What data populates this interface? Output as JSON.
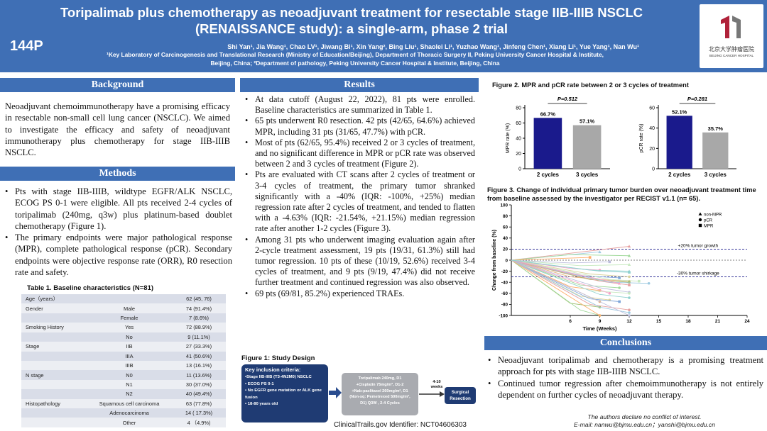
{
  "header": {
    "poster_id": "144P",
    "title_line1": "Toripalimab plus chemotherapy as neoadjuvant treatment for resectable stage IIB-IIIB NSCLC",
    "title_line2": "(RENAISSANCE study): a single-arm, phase 2 trial",
    "authors": "Shi Yan¹, Jia Wang¹, Chao LV¹, Jiwang Bi¹, Xin Yang², Bing Liu¹, Shaolei Li¹, Yuzhao Wang¹, Jinfeng Chen¹, Xiang Li¹, Yue Yang¹, Nan Wu¹",
    "affiliation_line1": "¹Key Laboratory of Carcinogenesis and Translational Research (Ministry of Education/Beijing), Department of Thoracic Surgery II, Peking University Cancer Hospital & Institute,",
    "affiliation_line2": "Beijing, China; ²Department of pathology, Peking University Cancer Hospital & Institute, Beijing, China",
    "logo_cn": "北京大学肿瘤医院",
    "logo_en": "BEIJING CANCER HOSPITAL",
    "logo_color": "#b0223a"
  },
  "background": {
    "heading": "Background",
    "text": "Neoadjuvant chemoimmunotherapy have a promising efficacy in resectable non-small cell lung cancer (NSCLC). We aimed to investigate the efficacy and safety of neoadjuvant immunotherapy plus chemotherapy for stage IIB-IIIB NSCLC."
  },
  "methods": {
    "heading": "Methods",
    "bullets": [
      "Pts with stage IIB-IIIB, wildtype EGFR/ALK NSCLC, ECOG PS 0-1 were eligible. All pts received 2-4 cycles of toripalimab (240mg, q3w) plus platinum-based doublet chemotherapy (Figure 1).",
      "The primary endpoints were major pathological response (MPR), complete pathological response (pCR). Secondary endpoints were objective response rate (ORR), R0 resection rate and safety."
    ]
  },
  "table1": {
    "title": "Table 1. Baseline characteristics (N=81)",
    "rows": [
      [
        "Age（years）",
        "",
        "62 (45, 76)"
      ],
      [
        "Gender",
        "Male",
        "74 (91.4%)"
      ],
      [
        "",
        "Female",
        "7 (8.6%)"
      ],
      [
        "Smoking History",
        "Yes",
        "72 (88.9%)"
      ],
      [
        "",
        "No",
        "9 (11.1%)"
      ],
      [
        "Stage",
        "IIB",
        "27 (33.3%)"
      ],
      [
        "",
        "IIIA",
        "41 (50.6%)"
      ],
      [
        "",
        "IIIB",
        "13 (16.1%)"
      ],
      [
        "N stage",
        "N0",
        "11 (13.6%)"
      ],
      [
        "",
        "N1",
        "30 (37.0%)"
      ],
      [
        "",
        "N2",
        "40 (49.4%)"
      ],
      [
        "Histopathology",
        "Squamous cell carcinoma",
        "63 (77.8%)"
      ],
      [
        "",
        "Adenocarcinoma",
        "14 ( 17.3%)"
      ],
      [
        "",
        "Other",
        "4 （4.9%)"
      ]
    ]
  },
  "results": {
    "heading": "Results",
    "bullets": [
      "At data cutoff (August 22, 2022), 81 pts were enrolled. Baseline characteristics are summarized in Table 1.",
      "65 pts underwent R0 resection. 42 pts (42/65, 64.6%) achieved MPR, including 31 pts (31/65, 47.7%) with pCR.",
      "Most of pts (62/65, 95.4%) received 2 or 3 cycles of treatment, and no significant difference in MPR or pCR rate was observed between 2 and 3 cycles of treatment (Figure 2).",
      "Pts are evaluated with CT scans after 2 cycles of treatment or 3-4 cycles of treatment, the primary tumor shranked significantly with a -40% (IQR: -100%, +25%) median regression rate after 2 cycles of treatment, and tended to flatten with a -4.63% (IQR: -21.54%, +21.15%) median regression rate after another 1-2 cycles (Figure 3).",
      "Among 31 pts who underwent imaging evaluation again after 2-cycle treatment assessment, 19 pts (19/31, 61.3%) still had tumor regression. 10 pts of these (10/19, 52.6%) received 3-4 cycles of treatment, and 9 pts (9/19, 47.4%) did not receive further treatment and continued regression was also observed.",
      "69 pts (69/81, 85.2%) experienced TRAEs."
    ]
  },
  "figure1": {
    "title": "Figure 1: Study Design",
    "criteria_title": "Key inclusion criteria:",
    "criteria": [
      "•Stage IIB-IIIB (T3-4N2M0) NSCLC",
      "• ECOG PS 0-1",
      "• No EGFR gene mutation or ALK gene fusion",
      "• 18-80 years old"
    ],
    "treatment": [
      "Toripalimab 240mg,  D1",
      "+Cisplatin 75mg/m², D1-2",
      "+Nab-paclitaxel 260mg/m²,  D1",
      "(Non-sq:  Pemetrexed 500mg/m²,",
      "D1)  Q3W ,  2-4 Cycles"
    ],
    "weeks": "4-10 weeks",
    "surgery": "Surgical Resection",
    "trial_id": "ClinicalTrails.gov Identifier: NCT04606303",
    "box_color": "#1f3b73",
    "treat_color": "#a9abb0"
  },
  "figure2": {
    "title": "Figure 2. MPR and pCR rate between 2 or 3 cycles of treatment"
  },
  "figure3": {
    "title": "Figure 3. Change of individual primary tumor burden over neoadjuvant treatment time from baseline assessed by the investigator per RECIST v1.1 (n= 65)."
  },
  "chart_data": [
    {
      "type": "bar",
      "id": "mpr",
      "categories": [
        "2 cycles",
        "3 cycles"
      ],
      "values": [
        66.7,
        57.1
      ],
      "data_labels": [
        "66.7%",
        "57.1%"
      ],
      "colors": [
        "#1a1a8c",
        "#a8a8a8"
      ],
      "ylabel": "MPR rate (%)",
      "ylim": [
        0,
        80
      ],
      "yticks": [
        0,
        20,
        40,
        60,
        80
      ],
      "annotation": "P=0.512"
    },
    {
      "type": "bar",
      "id": "pcr",
      "categories": [
        "2 cycles",
        "3 cycles"
      ],
      "values": [
        52.1,
        35.7
      ],
      "data_labels": [
        "52.1%",
        "35.7%"
      ],
      "colors": [
        "#1a1a8c",
        "#a8a8a8"
      ],
      "ylabel": "pCR rate (%)",
      "ylim": [
        0,
        60
      ],
      "yticks": [
        0,
        20,
        40,
        60
      ],
      "annotation": "P=0.281"
    },
    {
      "type": "line",
      "id": "spider",
      "xlabel": "Time (Weeks)",
      "ylabel": "Change from baseline (%)",
      "xlim": [
        0,
        24
      ],
      "xticks": [
        6,
        9,
        12,
        15,
        18,
        21,
        24
      ],
      "ylim": [
        -100,
        100
      ],
      "yticks": [
        100,
        80,
        60,
        40,
        20,
        0,
        -20,
        -40,
        -60,
        -80,
        -100
      ],
      "reference_lines": [
        {
          "y": 20,
          "label": "+20% tumor growth"
        },
        {
          "y": -30,
          "label": "-30% tumor shirkage"
        }
      ],
      "legend": [
        "non-MPR",
        "pCR",
        "MPR"
      ],
      "legend_placement": "top-right",
      "series": [
        {
          "x": [
            0,
            12
          ],
          "y": [
            0,
            25
          ],
          "group": "non-MPR"
        },
        {
          "x": [
            0,
            9
          ],
          "y": [
            0,
            15
          ],
          "group": "non-MPR"
        },
        {
          "x": [
            0,
            6,
            12
          ],
          "y": [
            0,
            10,
            8
          ],
          "group": "non-MPR"
        },
        {
          "x": [
            0,
            8
          ],
          "y": [
            0,
            5
          ],
          "group": "MPR"
        },
        {
          "x": [
            0,
            6,
            10
          ],
          "y": [
            0,
            -5,
            -3
          ],
          "group": "MPR"
        },
        {
          "x": [
            0,
            7,
            12
          ],
          "y": [
            0,
            -10,
            -8
          ],
          "group": "non-MPR"
        },
        {
          "x": [
            0,
            6,
            9
          ],
          "y": [
            0,
            -15,
            -18
          ],
          "group": "pCR"
        },
        {
          "x": [
            0,
            9,
            12
          ],
          "y": [
            0,
            -20,
            -22
          ],
          "group": "MPR"
        },
        {
          "x": [
            0,
            8,
            12
          ],
          "y": [
            0,
            -25,
            -30
          ],
          "group": "pCR"
        },
        {
          "x": [
            0,
            7,
            11
          ],
          "y": [
            0,
            -28,
            -32
          ],
          "group": "MPR"
        },
        {
          "x": [
            0,
            6,
            9,
            12
          ],
          "y": [
            0,
            -30,
            -35,
            -38
          ],
          "group": "pCR"
        },
        {
          "x": [
            0,
            8,
            12
          ],
          "y": [
            0,
            -35,
            -40
          ],
          "group": "pCR"
        },
        {
          "x": [
            0,
            9,
            12
          ],
          "y": [
            0,
            -38,
            -45
          ],
          "group": "MPR"
        },
        {
          "x": [
            0,
            10,
            14
          ],
          "y": [
            0,
            -40,
            -42
          ],
          "group": "pCR"
        },
        {
          "x": [
            0,
            7,
            11
          ],
          "y": [
            0,
            -45,
            -50
          ],
          "group": "pCR"
        },
        {
          "x": [
            0,
            6,
            9
          ],
          "y": [
            0,
            -48,
            -55
          ],
          "group": "MPR"
        },
        {
          "x": [
            0,
            9,
            12
          ],
          "y": [
            0,
            -50,
            -58
          ],
          "group": "pCR"
        },
        {
          "x": [
            0,
            8,
            12
          ],
          "y": [
            0,
            -55,
            -60
          ],
          "group": "pCR"
        },
        {
          "x": [
            0,
            10
          ],
          "y": [
            0,
            -60
          ],
          "group": "pCR"
        },
        {
          "x": [
            0,
            9,
            12
          ],
          "y": [
            0,
            -62,
            -68
          ],
          "group": "pCR"
        },
        {
          "x": [
            0,
            7,
            10
          ],
          "y": [
            0,
            -65,
            -72
          ],
          "group": "pCR"
        },
        {
          "x": [
            0,
            8,
            11
          ],
          "y": [
            0,
            -70,
            -75
          ],
          "group": "MPR"
        },
        {
          "x": [
            0,
            9
          ],
          "y": [
            0,
            -75
          ],
          "group": "pCR"
        },
        {
          "x": [
            0,
            6,
            9
          ],
          "y": [
            0,
            -78,
            -85
          ],
          "group": "pCR"
        },
        {
          "x": [
            0,
            8,
            12
          ],
          "y": [
            0,
            -80,
            -90
          ],
          "group": "pCR"
        },
        {
          "x": [
            0,
            9,
            12
          ],
          "y": [
            0,
            -85,
            -95
          ],
          "group": "pCR"
        },
        {
          "x": [
            0,
            7,
            9
          ],
          "y": [
            0,
            -90,
            -100
          ],
          "group": "pCR"
        },
        {
          "x": [
            0,
            9
          ],
          "y": [
            0,
            -100
          ],
          "group": "pCR"
        },
        {
          "x": [
            0,
            12
          ],
          "y": [
            0,
            -100
          ],
          "group": "pCR"
        },
        {
          "x": [
            0,
            10,
            13
          ],
          "y": [
            0,
            -35,
            -38
          ],
          "group": "MPR"
        },
        {
          "x": [
            0,
            11
          ],
          "y": [
            0,
            -42
          ],
          "group": "non-MPR"
        },
        {
          "x": [
            0,
            8,
            12
          ],
          "y": [
            0,
            -18,
            -20
          ],
          "group": "non-MPR"
        }
      ]
    }
  ],
  "conclusions": {
    "heading": "Conclusions",
    "bullets": [
      "Neoadjuvant toripalimab and chemotherapy is a promising treatment approach for pts with stage IIB-IIIB NSCLC.",
      "Continued tumor regression after chemoimmunotherapy is not entirely dependent on further cycles of neoadjuvant therapy."
    ]
  },
  "disclaimer": {
    "line1": "The authors declare no conflict of interest.",
    "line2": "E-mail: nanwu@bjmu.edu.cn；yanshi@bjmu.edu.cn"
  },
  "colors": {
    "header_blue": "#3f6fb5",
    "bar_dark": "#1a1a8c",
    "bar_gray": "#a8a8a8"
  }
}
